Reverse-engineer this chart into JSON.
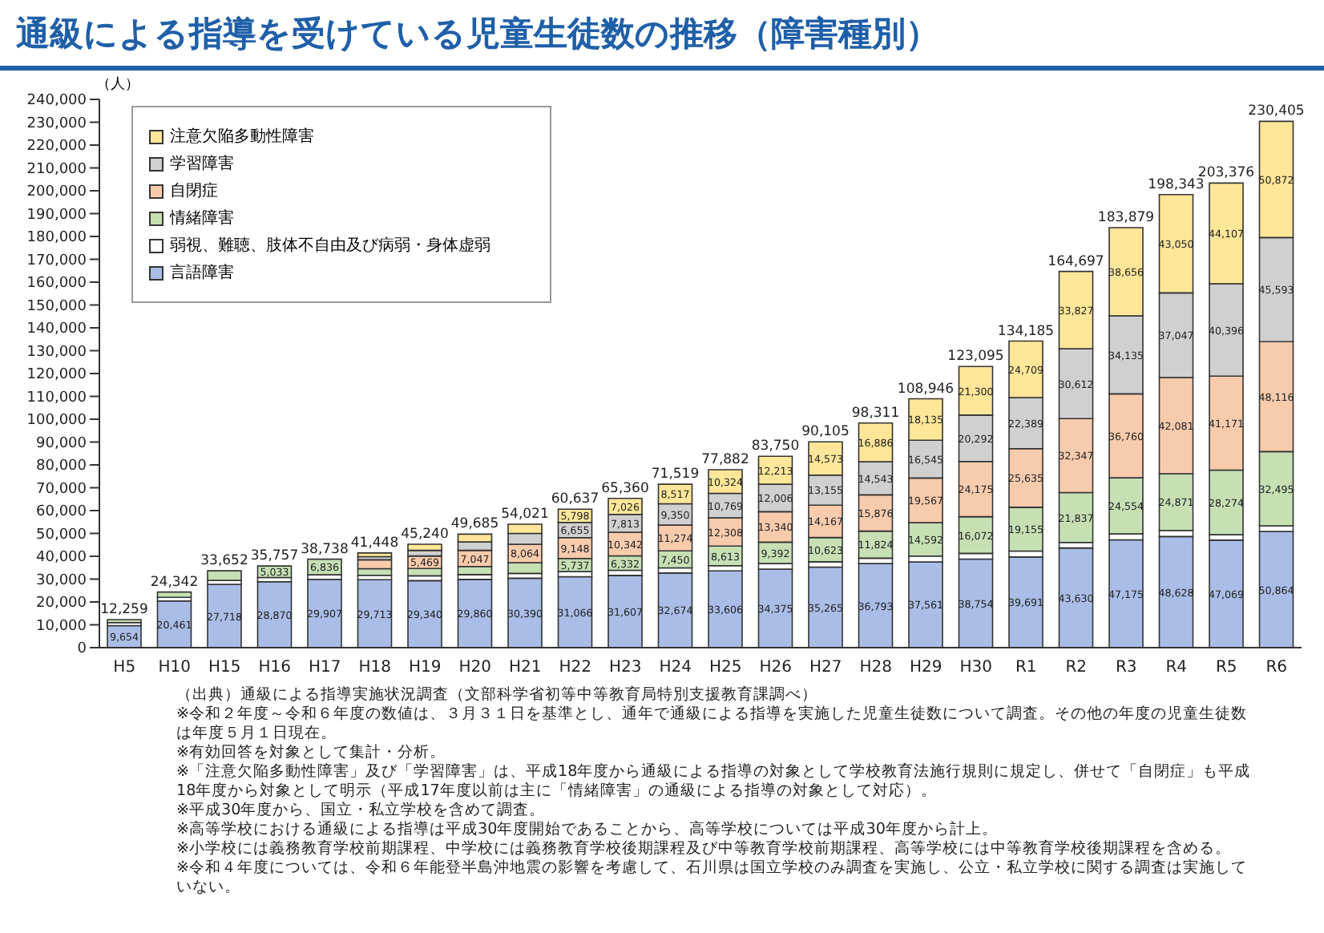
{
  "chart_data": {
    "type": "bar",
    "stacked": true,
    "title": "通級による指導を受けている児童生徒数の推移（障害種別）",
    "ylabel": "（人）",
    "categories": [
      "H5",
      "H10",
      "H15",
      "H16",
      "H17",
      "H18",
      "H19",
      "H20",
      "H21",
      "H22",
      "H23",
      "H24",
      "H25",
      "H26",
      "H27",
      "H28",
      "H29",
      "H30",
      "R1",
      "R2",
      "R3",
      "R4",
      "R5",
      "R6"
    ],
    "series": [
      {
        "name": "言語障害",
        "color": "#a9bde6",
        "values": [
          9654,
          20461,
          27718,
          28870,
          29907,
          29713,
          29340,
          29860,
          30390,
          31066,
          31607,
          32674,
          33606,
          34375,
          35265,
          36793,
          37561,
          38754,
          39691,
          43630,
          47175,
          48628,
          47069,
          50864
        ],
        "value_labels": [
          "9,654",
          "20,461",
          "27,718",
          "28,870",
          "29,907",
          "29,713",
          "29,340",
          "29,860",
          "30,390",
          "31,066",
          "31,607",
          "32,674",
          "33,606",
          "34,375",
          "35,265",
          "36,793",
          "37,561",
          "38,754",
          "39,691",
          "43,630",
          "47,175",
          "48,628",
          "47,069",
          "50,864"
        ]
      },
      {
        "name": "弱視、難聴、肢体不自由及び病弱・身体虚弱",
        "color": "#ffffff",
        "values": [
          1337,
          1561,
          1750,
          1854,
          1995,
          1943,
          2113,
          2101,
          2118,
          2233,
          2240,
          2254,
          2262,
          2424,
          2322,
          2389,
          2546,
          2502,
          2606,
          2444,
          2599,
          2666,
          2359,
          2465
        ]
      },
      {
        "name": "情緒障害",
        "color": "#c6e0b4",
        "values": [
          1268,
          2320,
          4184,
          5033,
          6836,
          2898,
          3197,
          3589,
          4710,
          5737,
          6332,
          7450,
          8613,
          9392,
          10623,
          11824,
          14592,
          16072,
          19155,
          21837,
          24554,
          24871,
          28274,
          32495
        ],
        "value_labels": [
          null,
          null,
          null,
          "5,033",
          "6,836",
          null,
          null,
          null,
          null,
          "5,737",
          "6,332",
          "7,450",
          "8,613",
          "9,392",
          "10,623",
          "11,824",
          "14,592",
          "16,072",
          "19,155",
          "21,837",
          "24,554",
          "24,871",
          "28,274",
          "32,495"
        ]
      },
      {
        "name": "自閉症",
        "color": "#f8cbad",
        "values": [
          null,
          null,
          null,
          null,
          null,
          3912,
          5469,
          7047,
          8064,
          9148,
          10342,
          11274,
          12308,
          13340,
          14167,
          15876,
          19567,
          24175,
          25635,
          32347,
          36760,
          42081,
          41171,
          48116
        ],
        "value_labels": [
          null,
          null,
          null,
          null,
          null,
          null,
          "5,469",
          "7,047",
          "8,064",
          "9,148",
          "10,342",
          "11,274",
          "12,308",
          "13,340",
          "14,167",
          "15,876",
          "19,567",
          "24,175",
          "25,635",
          "32,347",
          "36,760",
          "42,081",
          "41,171",
          "48,116"
        ]
      },
      {
        "name": "学習障害",
        "color": "#d0d0d0",
        "values": [
          null,
          null,
          null,
          null,
          null,
          1351,
          2485,
          3682,
          4726,
          6655,
          7813,
          9350,
          10769,
          12006,
          13155,
          14543,
          16545,
          20292,
          22389,
          30612,
          34135,
          37047,
          40396,
          45593
        ],
        "value_labels": [
          null,
          null,
          null,
          null,
          null,
          null,
          null,
          null,
          null,
          "6,655",
          "7,813",
          "9,350",
          "10,769",
          "12,006",
          "13,155",
          "14,543",
          "16,545",
          "20,292",
          "22,389",
          "30,612",
          "34,135",
          "37,047",
          "40,396",
          "45,593"
        ]
      },
      {
        "name": "注意欠陥多動性障害",
        "color": "#ffe699",
        "values": [
          null,
          null,
          null,
          null,
          null,
          1631,
          2636,
          3406,
          4013,
          5798,
          7026,
          8517,
          10324,
          12213,
          14573,
          16886,
          18135,
          21300,
          24709,
          33827,
          38656,
          43050,
          44107,
          50872
        ],
        "value_labels": [
          null,
          null,
          null,
          null,
          null,
          null,
          null,
          null,
          null,
          "5,798",
          "7,026",
          "8,517",
          "10,324",
          "12,213",
          "14,573",
          "16,886",
          "18,135",
          "21,300",
          "24,709",
          "33,827",
          "38,656",
          "43,050",
          "44,107",
          "50,872"
        ]
      }
    ],
    "totals": [
      "12,259",
      "24,342",
      "33,652",
      "35,757",
      "38,738",
      "41,448",
      "45,240",
      "49,685",
      "54,021",
      "60,637",
      "65,360",
      "71,519",
      "77,882",
      "83,750",
      "90,105",
      "98,311",
      "108,946",
      "123,095",
      "134,185",
      "164,697",
      "183,879",
      "198,343",
      "203,376",
      "230,405"
    ],
    "ylim": [
      0,
      240000
    ],
    "yticks": [
      0,
      {
        "value": 10000,
        "label": "10,000"
      },
      {
        "value": 20000,
        "label": "20,000"
      },
      {
        "value": 30000,
        "label": "30,000"
      },
      {
        "value": 40000,
        "label": "40,000"
      },
      {
        "value": 50000,
        "label": "50,000"
      },
      {
        "value": 60000,
        "label": "60,000"
      },
      {
        "value": 70000,
        "label": "70,000"
      },
      {
        "value": 80000,
        "label": "80,000"
      },
      {
        "value": 90000,
        "label": "90,000"
      },
      {
        "value": 100000,
        "label": "100,000"
      },
      {
        "value": 110000,
        "label": "110,000"
      },
      {
        "value": 120000,
        "label": "120,000"
      },
      {
        "value": 130000,
        "label": "130,000"
      },
      {
        "value": 140000,
        "label": "140,000"
      },
      {
        "value": 150000,
        "label": "150,000"
      },
      {
        "value": 160000,
        "label": "160,000"
      },
      {
        "value": 170000,
        "label": "170,000"
      },
      {
        "value": 180000,
        "label": "180,000"
      },
      {
        "value": 190000,
        "label": "190,000"
      },
      {
        "value": 200000,
        "label": "200,000"
      },
      {
        "value": 210000,
        "label": "210,000"
      },
      {
        "value": 220000,
        "label": "220,000"
      },
      {
        "value": 230000,
        "label": "230,000"
      },
      {
        "value": 240000,
        "label": "240,000"
      }
    ],
    "legend": "top left",
    "grid": false,
    "annotations": [
      "（出典）通級による指導実施状況調査（文部科学省初等中等教育局特別支援教育課調べ）",
      "※令和２年度～令和６年度の数値は、３月３１日を基準とし、通年で通級による指導を実施した児童生徒数について調査。その他の年度の児童生徒数は年度５月１日現在。",
      "※有効回答を対象として集計・分析。",
      "※「注意欠陥多動性障害」及び「学習障害」は、平成18年度から通級による指導の対象として学校教育法施行規則に規定し、併せて「自閉症」も平成18年度から対象として明示（平成17年度以前は主に「情緒障害」の通級による指導の対象として対応）。",
      "※平成30年度から、国立・私立学校を含めて調査。",
      "※高等学校における通級による指導は平成30年度開始であることから、高等学校については平成30年度から計上。",
      "※小学校には義務教育学校前期課程、中学校には義務教育学校後期課程及び中等教育学校前期課程、高等学校には中等教育学校後期課程を含める。",
      "※令和４年度については、令和６年能登半島沖地震の影響を考慮して、石川県は国立学校のみ調査を実施し、公立・私立学校に関する調査は実施していない。"
    ]
  }
}
